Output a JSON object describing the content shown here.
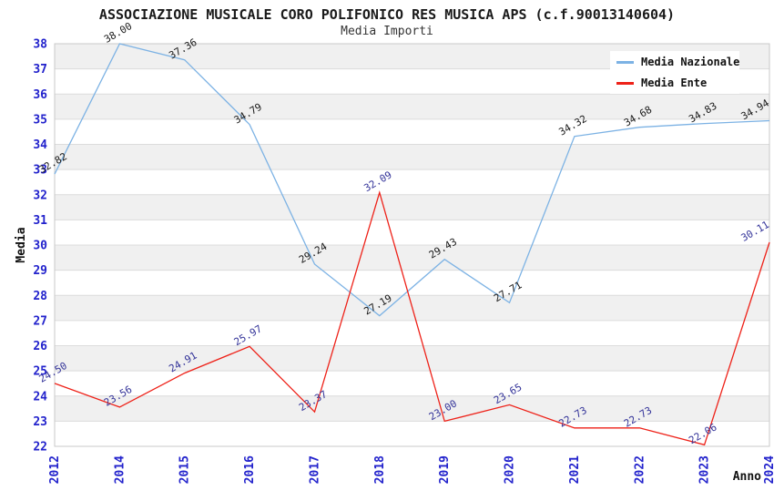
{
  "header": {
    "title": "ASSOCIAZIONE MUSICALE CORO POLIFONICO RES MUSICA APS (c.f.90013140604)",
    "subtitle": "Media Importi"
  },
  "chart_data": {
    "type": "line",
    "title": "ASSOCIAZIONE MUSICALE CORO POLIFONICO RES MUSICA APS (c.f.90013140604)",
    "subtitle": "Media Importi",
    "xlabel": "Anno",
    "ylabel": "Media",
    "categories": [
      "2012",
      "2014",
      "2015",
      "2016",
      "2017",
      "2018",
      "2019",
      "2020",
      "2021",
      "2022",
      "2023",
      "2024"
    ],
    "series": [
      {
        "name": "Media Nazionale",
        "color": "#7cb2e4",
        "label_color": "#1a1a1a",
        "values": [
          32.82,
          38.0,
          37.36,
          34.79,
          29.24,
          27.19,
          29.43,
          27.71,
          34.32,
          34.68,
          34.83,
          34.94
        ]
      },
      {
        "name": "Media Ente",
        "color": "#ee2118",
        "label_color": "#333399",
        "values": [
          24.5,
          23.56,
          24.91,
          25.97,
          23.37,
          32.09,
          23.0,
          23.65,
          22.73,
          22.73,
          22.06,
          30.11
        ]
      }
    ],
    "ylim": [
      22,
      38
    ],
    "ytick_step": 1,
    "legend_position": "top-right",
    "grid": {
      "horizontal_gridlines": true,
      "vertical_gridlines": false,
      "alternating_bands": true
    },
    "colors": {
      "axis_tick": "#2222cc",
      "band": "#f0f0f0",
      "gridline": "#dcdcdc",
      "plot_border": "#c9c9c9"
    }
  }
}
